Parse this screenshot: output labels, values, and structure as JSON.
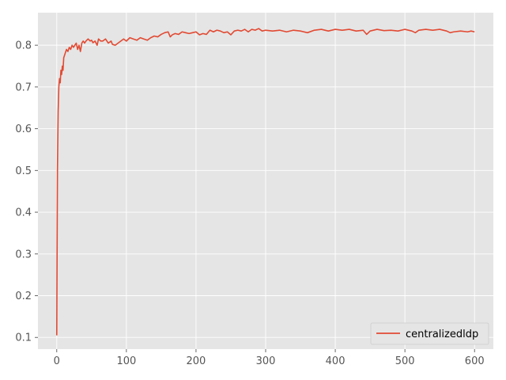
{
  "chart_data": {
    "type": "line",
    "title": "",
    "xlabel": "",
    "ylabel": "",
    "xlim": [
      -27,
      627
    ],
    "ylim": [
      0.072,
      0.878
    ],
    "xticks": [
      0,
      100,
      200,
      300,
      400,
      500,
      600
    ],
    "yticks": [
      0.1,
      0.2,
      0.3,
      0.4,
      0.5,
      0.6,
      0.7,
      0.8
    ],
    "grid": true,
    "legend_position": "lower-right",
    "colors": {
      "background": "#e5e5e5",
      "grid": "#ffffff",
      "line": "#e24a33"
    },
    "series": [
      {
        "name": "centralizedldp",
        "x": [
          0,
          1,
          2,
          3,
          4,
          5,
          6,
          7,
          8,
          9,
          10,
          12,
          14,
          16,
          18,
          20,
          22,
          24,
          26,
          28,
          30,
          32,
          34,
          36,
          38,
          40,
          42,
          45,
          48,
          50,
          52,
          55,
          58,
          60,
          63,
          66,
          70,
          74,
          78,
          80,
          84,
          88,
          92,
          96,
          100,
          105,
          110,
          115,
          120,
          125,
          130,
          135,
          140,
          145,
          150,
          155,
          160,
          163,
          166,
          170,
          175,
          180,
          185,
          190,
          195,
          200,
          205,
          210,
          215,
          220,
          225,
          230,
          235,
          240,
          245,
          250,
          255,
          260,
          265,
          270,
          275,
          280,
          285,
          290,
          295,
          300,
          310,
          320,
          330,
          340,
          350,
          360,
          370,
          380,
          390,
          400,
          410,
          420,
          430,
          440,
          445,
          450,
          460,
          470,
          480,
          490,
          500,
          510,
          515,
          520,
          530,
          540,
          550,
          560,
          565,
          570,
          580,
          590,
          595,
          600
        ],
        "y": [
          0.105,
          0.5,
          0.64,
          0.7,
          0.72,
          0.71,
          0.74,
          0.73,
          0.75,
          0.74,
          0.77,
          0.78,
          0.79,
          0.785,
          0.795,
          0.79,
          0.8,
          0.795,
          0.8,
          0.805,
          0.79,
          0.8,
          0.785,
          0.805,
          0.81,
          0.805,
          0.81,
          0.815,
          0.81,
          0.812,
          0.806,
          0.81,
          0.8,
          0.815,
          0.81,
          0.81,
          0.815,
          0.805,
          0.81,
          0.802,
          0.8,
          0.805,
          0.81,
          0.815,
          0.81,
          0.818,
          0.815,
          0.812,
          0.818,
          0.815,
          0.812,
          0.818,
          0.822,
          0.82,
          0.826,
          0.83,
          0.832,
          0.82,
          0.825,
          0.828,
          0.826,
          0.832,
          0.83,
          0.828,
          0.83,
          0.832,
          0.825,
          0.828,
          0.826,
          0.836,
          0.832,
          0.836,
          0.834,
          0.83,
          0.832,
          0.825,
          0.834,
          0.836,
          0.834,
          0.838,
          0.832,
          0.838,
          0.836,
          0.84,
          0.834,
          0.836,
          0.834,
          0.836,
          0.832,
          0.836,
          0.834,
          0.83,
          0.836,
          0.838,
          0.834,
          0.838,
          0.836,
          0.838,
          0.834,
          0.836,
          0.826,
          0.834,
          0.838,
          0.835,
          0.836,
          0.834,
          0.838,
          0.834,
          0.83,
          0.836,
          0.838,
          0.836,
          0.838,
          0.834,
          0.83,
          0.832,
          0.834,
          0.832,
          0.834,
          0.832
        ]
      }
    ]
  }
}
